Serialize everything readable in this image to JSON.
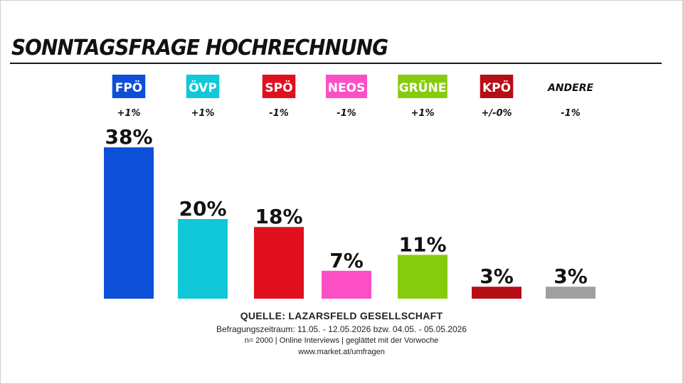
{
  "title": "SONNTAGSFRAGE HOCHRECHNUNG",
  "chart_data": {
    "type": "bar",
    "categories": [
      "FPÖ",
      "ÖVP",
      "SPÖ",
      "NEOS",
      "GRÜNE",
      "KPÖ",
      "ANDERE"
    ],
    "values": [
      38,
      20,
      18,
      7,
      11,
      3,
      3
    ],
    "value_labels": [
      "38%",
      "20%",
      "18%",
      "7%",
      "11%",
      "3%",
      "3%"
    ],
    "changes": [
      "+1%",
      "+1%",
      "-1%",
      "-1%",
      "+1%",
      "+/-0%",
      "-1%"
    ],
    "colors": [
      "#0d4fd6",
      "#10c8d8",
      "#e0101e",
      "#fc4fc6",
      "#86cc0e",
      "#b50e17",
      "#a0a0a0"
    ],
    "label_styles": [
      "box",
      "box",
      "box",
      "box",
      "box",
      "box",
      "plain"
    ],
    "grid": false,
    "legend": "none"
  },
  "footer": {
    "source": "QUELLE: LAZARSFELD GESELLSCHAFT",
    "period": "Befragungszeitraum: 11.05. - 12.05.2026 bzw. 04.05. - 05.05.2026",
    "method": "n= 2000 | Online Interviews | geglättet mit der Vorwoche",
    "url": "www.market.at/umfragen"
  }
}
